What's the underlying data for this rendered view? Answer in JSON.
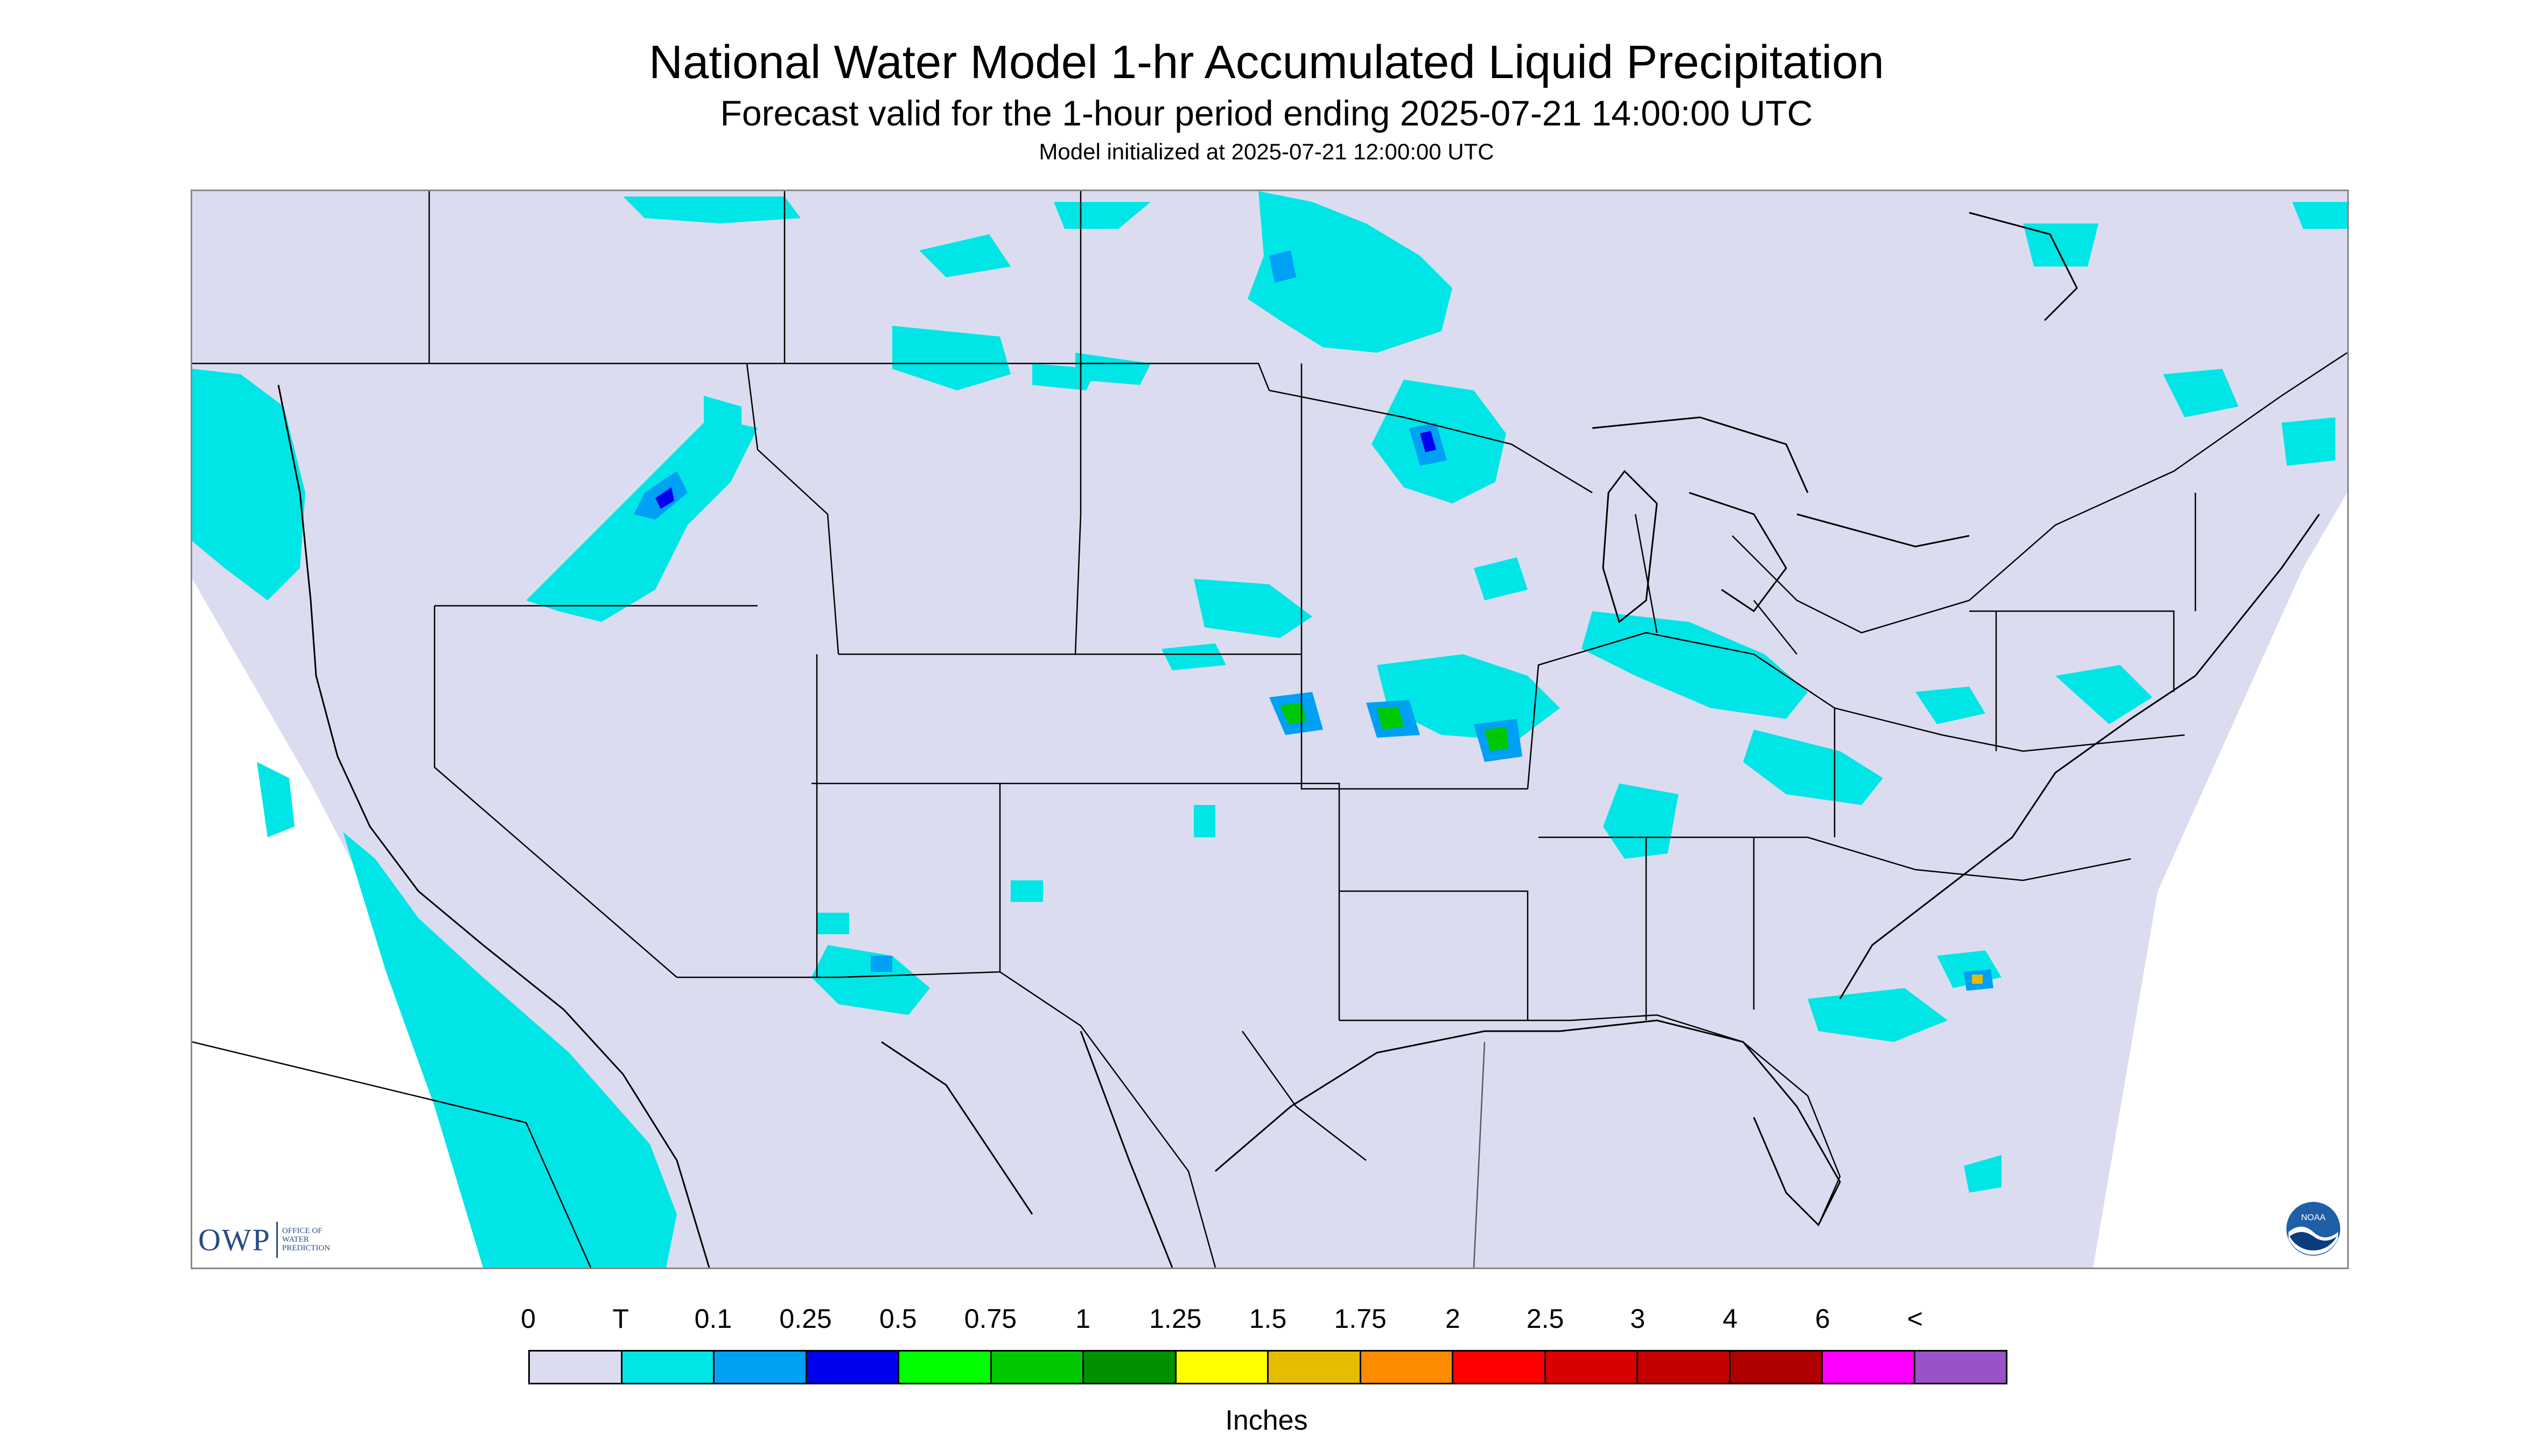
{
  "header": {
    "title": "National Water Model 1-hr Accumulated Liquid Precipitation",
    "subtitle": "Forecast valid for the 1-hour period ending 2025-07-21 14:00:00 UTC",
    "init": "Model initialized at 2025-07-21 12:00:00 UTC"
  },
  "logos": {
    "owp_mark": "OWP",
    "owp_text_line1": "Office of",
    "owp_text_line2": "Water",
    "owp_text_line3": "Prediction",
    "noaa": "NOAA"
  },
  "legend": {
    "labels": [
      "0",
      "T",
      "0.1",
      "0.25",
      "0.5",
      "0.75",
      "1",
      "1.25",
      "1.5",
      "1.75",
      "2",
      "2.5",
      "3",
      "4",
      "6",
      "<"
    ],
    "colors": [
      "#dcdcf0",
      "#00e5e5",
      "#00a0f5",
      "#0000f0",
      "#00ff00",
      "#00c800",
      "#009000",
      "#ffff00",
      "#e6bc00",
      "#ff8c00",
      "#ff0000",
      "#d90000",
      "#c40000",
      "#b00000",
      "#ff00ff",
      "#9a52c8"
    ],
    "unit": "Inches"
  },
  "map": {
    "background_color": "#dcdcf0",
    "outside_color": "#ffffff",
    "boundary_color": "#000000"
  }
}
